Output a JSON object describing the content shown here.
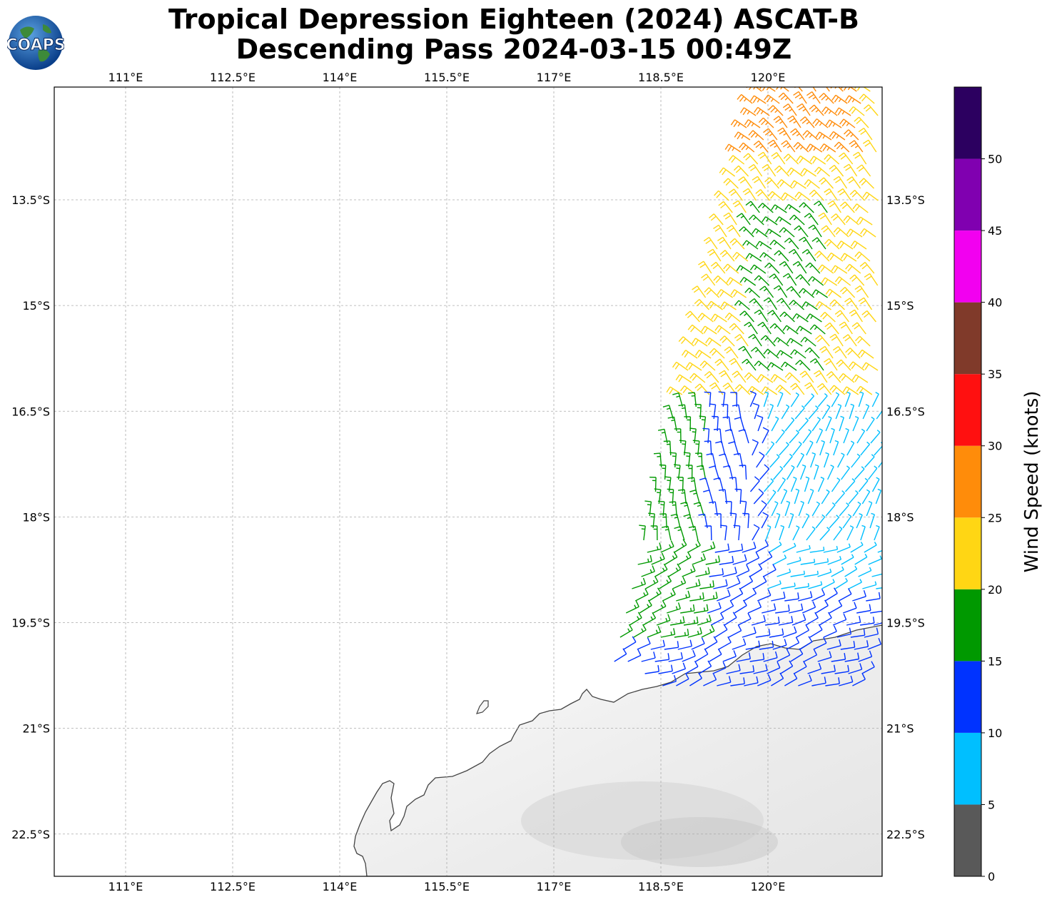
{
  "title": {
    "line1": "Tropical Depression Eighteen (2024) ASCAT-B",
    "line2": "Descending Pass 2024-03-15 00:49Z"
  },
  "logo": {
    "text": "COAPS",
    "icon": "globe-logo-icon"
  },
  "map": {
    "lon_range": [
      110,
      121.6
    ],
    "lat_range": [
      -23.1,
      -11.9
    ],
    "lon_ticks": [
      {
        "value": 111,
        "label": "111°E"
      },
      {
        "value": 112.5,
        "label": "112.5°E"
      },
      {
        "value": 114,
        "label": "114°E"
      },
      {
        "value": 115.5,
        "label": "115.5°E"
      },
      {
        "value": 117,
        "label": "117°E"
      },
      {
        "value": 118.5,
        "label": "118.5°E"
      },
      {
        "value": 120,
        "label": "120°E"
      }
    ],
    "lat_ticks": [
      {
        "value": -13.5,
        "label": "13.5°S"
      },
      {
        "value": -15,
        "label": "15°S"
      },
      {
        "value": -16.5,
        "label": "16.5°S"
      },
      {
        "value": -18,
        "label": "18°S"
      },
      {
        "value": -19.5,
        "label": "19.5°S"
      },
      {
        "value": -21,
        "label": "21°S"
      },
      {
        "value": -22.5,
        "label": "22.5°S"
      }
    ],
    "grid": true,
    "land_color": "#f2f2f2",
    "coast_color": "#444444"
  },
  "colorbar": {
    "label": "Wind Speed (knots)",
    "bins": [
      {
        "min": 0,
        "max": 5,
        "color": "#595959"
      },
      {
        "min": 5,
        "max": 10,
        "color": "#00bfff"
      },
      {
        "min": 10,
        "max": 15,
        "color": "#0033ff"
      },
      {
        "min": 15,
        "max": 20,
        "color": "#009900"
      },
      {
        "min": 20,
        "max": 25,
        "color": "#ffd614"
      },
      {
        "min": 25,
        "max": 30,
        "color": "#ff8c0a"
      },
      {
        "min": 30,
        "max": 35,
        "color": "#ff1010"
      },
      {
        "min": 35,
        "max": 40,
        "color": "#803a2a"
      },
      {
        "min": 40,
        "max": 45,
        "color": "#f200f0"
      },
      {
        "min": 45,
        "max": 50,
        "color": "#8000b0"
      },
      {
        "min": 50,
        "max": 55,
        "color": "#2c0060"
      }
    ],
    "ticks": [
      "0",
      "5",
      "10",
      "15",
      "20",
      "25",
      "30",
      "35",
      "40",
      "45",
      "50"
    ]
  }
}
